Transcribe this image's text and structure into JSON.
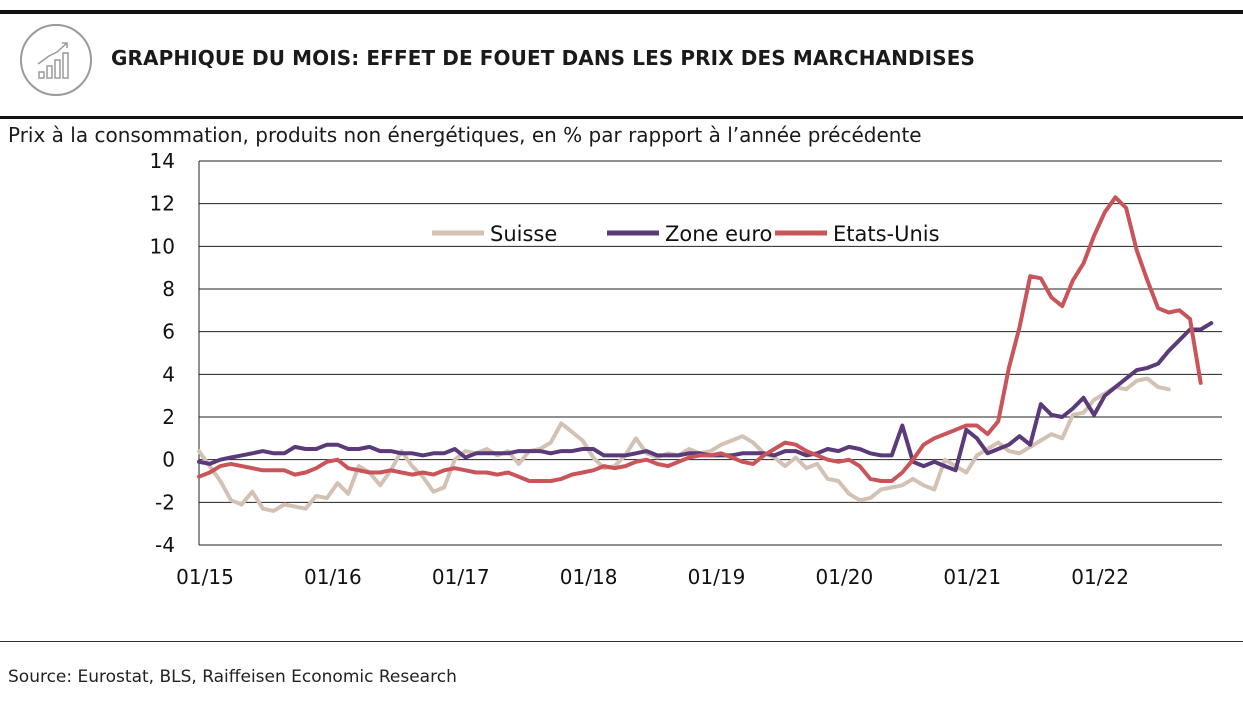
{
  "header": {
    "title": "GRAPHIQUE DU MOIS: EFFET DE FOUET DANS LES PRIX DES MARCHANDISES",
    "icon": "bar-chart-growth-icon"
  },
  "footer": {
    "source": "Source: Eurostat, BLS, Raiffeisen Economic Research"
  },
  "chart_data": {
    "type": "line",
    "title": "Prix à la consommation, produits non énergétiques, en % par rapport à l’année précédente",
    "xlabel": "",
    "ylabel": "",
    "ylim": [
      -4,
      14
    ],
    "yticks": [
      "14",
      "12",
      "10",
      "8",
      "6",
      "4",
      "2",
      "0",
      "-2",
      "-4"
    ],
    "xticks": [
      "01/15",
      "01/16",
      "01/17",
      "01/18",
      "01/19",
      "01/20",
      "01/21",
      "01/22"
    ],
    "x_start": "01/15",
    "x_frequency": "monthly",
    "grid": true,
    "legend_position": "top-center",
    "series": [
      {
        "name": "Suisse",
        "color": "#d3c2b4",
        "values": [
          0.4,
          -0.3,
          -1.0,
          -1.9,
          -2.1,
          -1.5,
          -2.3,
          -2.4,
          -2.1,
          -2.2,
          -2.3,
          -1.7,
          -1.8,
          -1.1,
          -1.6,
          -0.3,
          -0.6,
          -1.2,
          -0.5,
          0.4,
          -0.3,
          -0.8,
          -1.5,
          -1.3,
          0.0,
          0.4,
          0.3,
          0.5,
          0.2,
          0.4,
          -0.2,
          0.4,
          0.5,
          0.8,
          1.7,
          1.3,
          0.9,
          0.1,
          -0.4,
          -0.3,
          0.2,
          1.0,
          0.3,
          0.1,
          0.3,
          0.2,
          0.5,
          0.3,
          0.4,
          0.7,
          0.9,
          1.1,
          0.8,
          0.3,
          0.1,
          -0.3,
          0.1,
          -0.4,
          -0.2,
          -0.9,
          -1.0,
          -1.6,
          -1.9,
          -1.8,
          -1.4,
          -1.3,
          -1.2,
          -0.9,
          -1.2,
          -1.4,
          0.0,
          -0.3,
          -0.6,
          0.2,
          0.5,
          0.8,
          0.4,
          0.3,
          0.6,
          0.9,
          1.2,
          1.0,
          2.1,
          2.2,
          2.8,
          3.1,
          3.4,
          3.3,
          3.7,
          3.8,
          3.4,
          3.3
        ]
      },
      {
        "name": "Zone euro",
        "color": "#5b3a7a",
        "values": [
          -0.1,
          -0.2,
          0.0,
          0.1,
          0.2,
          0.3,
          0.4,
          0.3,
          0.3,
          0.6,
          0.5,
          0.5,
          0.7,
          0.7,
          0.5,
          0.5,
          0.6,
          0.4,
          0.4,
          0.3,
          0.3,
          0.2,
          0.3,
          0.3,
          0.5,
          0.1,
          0.3,
          0.3,
          0.3,
          0.3,
          0.4,
          0.4,
          0.4,
          0.3,
          0.4,
          0.4,
          0.5,
          0.5,
          0.2,
          0.2,
          0.2,
          0.3,
          0.4,
          0.2,
          0.2,
          0.2,
          0.3,
          0.3,
          0.2,
          0.2,
          0.2,
          0.3,
          0.3,
          0.3,
          0.2,
          0.4,
          0.4,
          0.2,
          0.3,
          0.5,
          0.4,
          0.6,
          0.5,
          0.3,
          0.2,
          0.2,
          1.6,
          -0.1,
          -0.3,
          -0.1,
          -0.3,
          -0.5,
          1.4,
          1.0,
          0.3,
          0.5,
          0.7,
          1.1,
          0.7,
          2.6,
          2.1,
          2.0,
          2.4,
          2.9,
          2.1,
          3.0,
          3.4,
          3.8,
          4.2,
          4.3,
          4.5,
          5.1,
          5.6,
          6.1,
          6.1,
          6.4
        ]
      },
      {
        "name": "Etats-Unis",
        "color": "#c9545a",
        "values": [
          -0.8,
          -0.6,
          -0.3,
          -0.2,
          -0.3,
          -0.4,
          -0.5,
          -0.5,
          -0.5,
          -0.7,
          -0.6,
          -0.4,
          -0.1,
          0.0,
          -0.4,
          -0.5,
          -0.6,
          -0.6,
          -0.5,
          -0.6,
          -0.7,
          -0.6,
          -0.7,
          -0.5,
          -0.4,
          -0.5,
          -0.6,
          -0.6,
          -0.7,
          -0.6,
          -0.8,
          -1.0,
          -1.0,
          -1.0,
          -0.9,
          -0.7,
          -0.6,
          -0.5,
          -0.3,
          -0.4,
          -0.3,
          -0.1,
          0.0,
          -0.2,
          -0.3,
          -0.1,
          0.1,
          0.2,
          0.2,
          0.3,
          0.1,
          -0.1,
          -0.2,
          0.2,
          0.5,
          0.8,
          0.7,
          0.4,
          0.2,
          0.0,
          -0.1,
          0.0,
          -0.3,
          -0.9,
          -1.0,
          -1.0,
          -0.6,
          0.0,
          0.7,
          1.0,
          1.2,
          1.4,
          1.6,
          1.6,
          1.2,
          1.8,
          4.3,
          6.2,
          8.6,
          8.5,
          7.6,
          7.2,
          8.4,
          9.2,
          10.5,
          11.6,
          12.3,
          11.8,
          9.8,
          8.4,
          7.1,
          6.9,
          7.0,
          6.6,
          3.6
        ]
      }
    ]
  }
}
